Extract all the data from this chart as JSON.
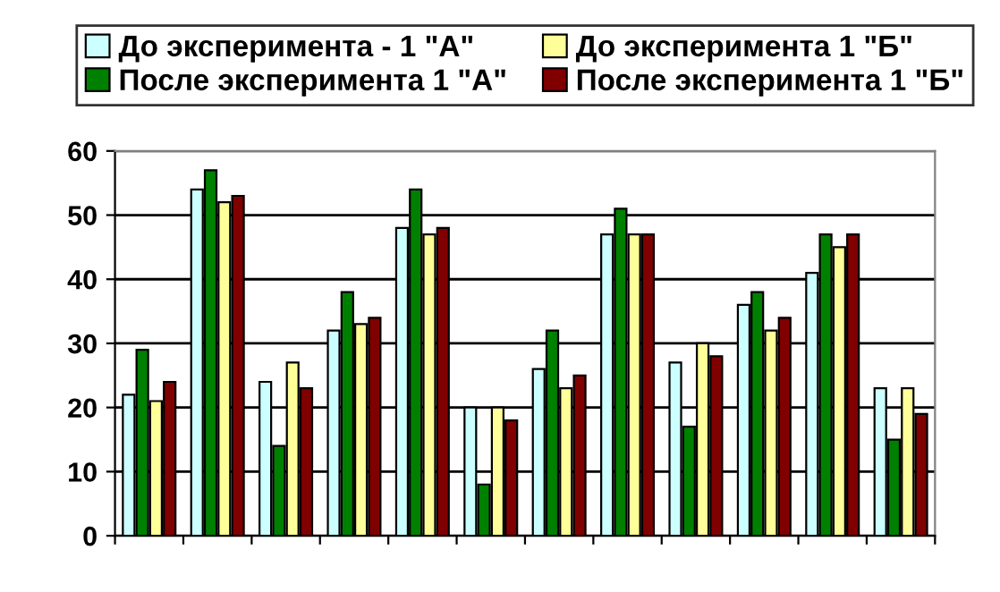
{
  "chart_data": {
    "type": "bar",
    "categories": [
      null,
      null,
      null,
      null,
      null,
      null,
      null,
      null,
      null,
      null,
      null,
      null
    ],
    "series": [
      {
        "name": "До эксперимента - 1 \"А\"",
        "color": "#ccffff",
        "values": [
          22,
          54,
          24,
          32,
          48,
          20,
          26,
          47,
          27,
          36,
          41,
          23
        ]
      },
      {
        "name": "После эксперимента 1 \"А\"",
        "color": "#008000",
        "values": [
          29,
          57,
          14,
          38,
          54,
          8,
          32,
          51,
          17,
          38,
          47,
          15
        ]
      },
      {
        "name": "До эксперимента 1 \"Б\"",
        "color": "#ffff99",
        "values": [
          21,
          52,
          27,
          33,
          47,
          20,
          23,
          47,
          30,
          32,
          45,
          23
        ]
      },
      {
        "name": "После эксперимента 1 \"Б\"",
        "color": "#800000",
        "values": [
          24,
          53,
          23,
          34,
          48,
          18,
          25,
          47,
          28,
          34,
          47,
          19
        ]
      }
    ],
    "ylim": [
      0,
      60
    ],
    "yticks": [
      0,
      10,
      20,
      30,
      40,
      50,
      60
    ],
    "grid": "y",
    "legend": "top"
  }
}
